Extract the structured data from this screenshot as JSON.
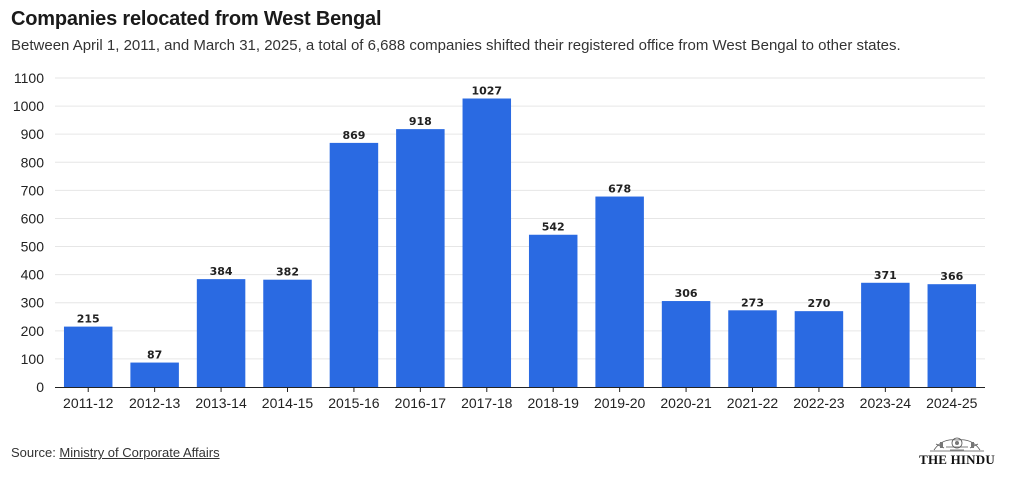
{
  "header": {
    "title": "Companies relocated from West Bengal",
    "subtitle": "Between April 1, 2011, and March 31, 2025, a total of 6,688 companies shifted their registered office from West Bengal to other states."
  },
  "footer": {
    "source_prefix": "Source: ",
    "source_link": "Ministry of Corporate Affairs",
    "logo_text": "THE HINDU"
  },
  "colors": {
    "bar": "#2a6ae2",
    "grid": "#e6e6e6",
    "axis": "#222222"
  },
  "chart_data": {
    "type": "bar",
    "title": "Companies relocated from West Bengal",
    "xlabel": "",
    "ylabel": "",
    "ylim": [
      0,
      1100
    ],
    "yticks": [
      0,
      100,
      200,
      300,
      400,
      500,
      600,
      700,
      800,
      900,
      1000,
      1100
    ],
    "grid": true,
    "categories": [
      "2011-12",
      "2012-13",
      "2013-14",
      "2014-15",
      "2015-16",
      "2016-17",
      "2017-18",
      "2018-19",
      "2019-20",
      "2020-21",
      "2021-22",
      "2022-23",
      "2023-24",
      "2024-25"
    ],
    "values": [
      215,
      87,
      384,
      382,
      869,
      918,
      1027,
      542,
      678,
      306,
      273,
      270,
      371,
      366
    ],
    "data_labels": true
  }
}
